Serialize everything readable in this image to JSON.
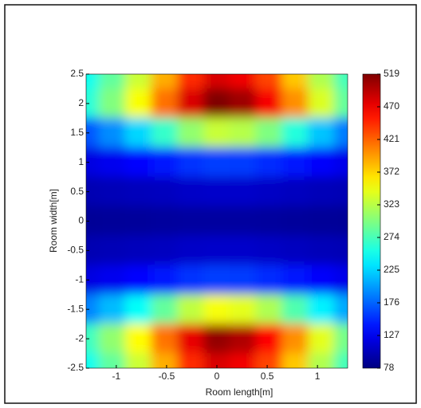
{
  "chart_data": {
    "type": "heatmap",
    "xlabel": "Room length[m]",
    "ylabel": "Room width[m]",
    "colormap": "jet",
    "x": [
      -1.3,
      -1.04,
      -0.78,
      -0.52,
      -0.26,
      0,
      0.26,
      0.52,
      0.78,
      1.04,
      1.3
    ],
    "y": [
      2.5,
      2.0,
      1.5,
      1.0,
      0.5,
      0,
      -0.5,
      -1.0,
      -1.5,
      -2.0,
      -2.5
    ],
    "z": [
      [
        250,
        285,
        331,
        388,
        446,
        480,
        469,
        434,
        377,
        319,
        273
      ],
      [
        260,
        299,
        351,
        415,
        480,
        519,
        506,
        467,
        402,
        338,
        286
      ],
      [
        170,
        194,
        226,
        266,
        306,
        330,
        322,
        298,
        258,
        218,
        186
      ],
      [
        120,
        126,
        134,
        144,
        154,
        160,
        158,
        152,
        142,
        132,
        124
      ],
      [
        100,
        102,
        104,
        106,
        109,
        110,
        110,
        108,
        106,
        103,
        101
      ],
      [
        88,
        89,
        90,
        91,
        92,
        92,
        92,
        91,
        90,
        89,
        88
      ],
      [
        100,
        102,
        104,
        106,
        109,
        110,
        110,
        108,
        106,
        103,
        101
      ],
      [
        120,
        126,
        134,
        144,
        154,
        160,
        158,
        152,
        142,
        132,
        124
      ],
      [
        190,
        214,
        246,
        286,
        326,
        350,
        342,
        318,
        278,
        238,
        206
      ],
      [
        270,
        306,
        354,
        414,
        474,
        510,
        498,
        462,
        402,
        342,
        294
      ],
      [
        250,
        285,
        331,
        388,
        446,
        480,
        469,
        434,
        377,
        319,
        273
      ]
    ],
    "xlim": [
      -1.3,
      1.3
    ],
    "xticks": [
      -1,
      -0.5,
      0,
      0.5,
      1
    ],
    "ylim": [
      -2.5,
      2.5
    ],
    "yticks": [
      -2.5,
      -2,
      -1.5,
      -1,
      -0.5,
      0,
      0.5,
      1,
      1.5,
      2,
      2.5
    ],
    "clim": [
      78,
      519
    ],
    "cticks": [
      78,
      127,
      176,
      225,
      274,
      323,
      372,
      421,
      470,
      519
    ]
  }
}
